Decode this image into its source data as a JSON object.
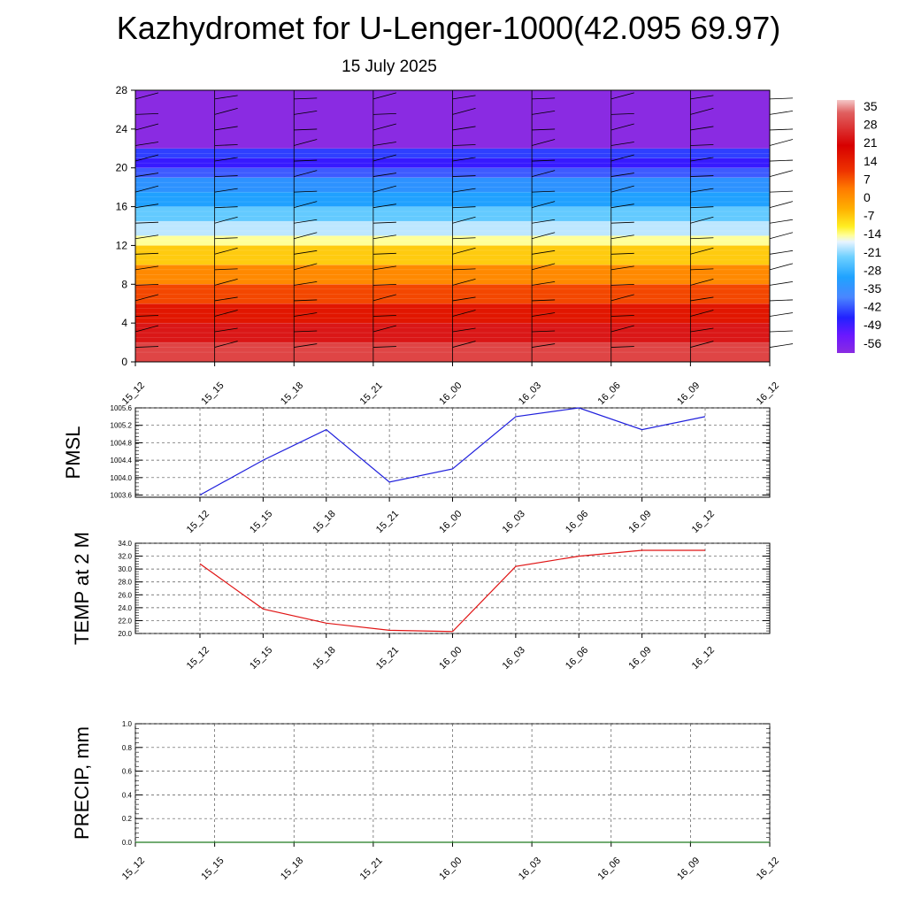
{
  "page": {
    "title": "Kazhydromet for U-Lenger-1000(42.095 69.97)",
    "subtitle": "15 July 2025"
  },
  "colors": {
    "pmsl_line": "#1f1fdc",
    "temp_line": "#e01414",
    "precip_line": "#1e7a1e",
    "grid": "#555555"
  },
  "chart_data": [
    {
      "type": "heatmap",
      "name": "temperature-height-section",
      "x": [
        "15_12",
        "15_15",
        "15_18",
        "15_21",
        "16_00",
        "16_03",
        "16_06",
        "16_09",
        "16_12"
      ],
      "ylim": [
        0,
        28
      ],
      "yticks": [
        0,
        4,
        8,
        12,
        16,
        20,
        24,
        28
      ],
      "colorbar": {
        "labels": [
          "35",
          "28",
          "21",
          "14",
          "7",
          "0",
          "-7",
          "-14",
          "-21",
          "-28",
          "-35",
          "-42",
          "-49",
          "-56"
        ],
        "range": [
          -60,
          38
        ]
      },
      "bands": [
        {
          "y0": 0,
          "y1": 2,
          "value": 34
        },
        {
          "y0": 2,
          "y1": 4,
          "value": 30
        },
        {
          "y0": 4,
          "y1": 6,
          "value": 25
        },
        {
          "y0": 6,
          "y1": 8,
          "value": 19
        },
        {
          "y0": 8,
          "y1": 10,
          "value": 12
        },
        {
          "y0": 10,
          "y1": 12,
          "value": 4
        },
        {
          "y0": 12,
          "y1": 13,
          "value": -8
        },
        {
          "y0": 13,
          "y1": 14.5,
          "value": -16
        },
        {
          "y0": 14.5,
          "y1": 16,
          "value": -22
        },
        {
          "y0": 16,
          "y1": 17.5,
          "value": -29
        },
        {
          "y0": 17.5,
          "y1": 19,
          "value": -36
        },
        {
          "y0": 19,
          "y1": 20,
          "value": -44
        },
        {
          "y0": 20,
          "y1": 21,
          "value": -52
        },
        {
          "y0": 21,
          "y1": 22,
          "value": -46
        },
        {
          "y0": 22,
          "y1": 28,
          "value": -60
        }
      ],
      "wind_barbs": "present"
    },
    {
      "type": "line",
      "ylabel": "PMSL",
      "x": [
        "15_12",
        "15_15",
        "15_18",
        "15_21",
        "16_00",
        "16_03",
        "16_06",
        "16_09",
        "16_12"
      ],
      "values": [
        1003.6,
        1004.4,
        1005.1,
        1003.9,
        1004.2,
        1005.4,
        1005.6,
        1005.1,
        1005.4
      ],
      "yticks": [
        "1003.6",
        "1004.0",
        "1004.4",
        "1004.8",
        "1005.2",
        "1005.6"
      ],
      "ylim": [
        1003.55,
        1005.6
      ],
      "grid": true
    },
    {
      "type": "line",
      "ylabel": "TEMP at 2 M",
      "x": [
        "15_12",
        "15_15",
        "15_18",
        "15_21",
        "16_00",
        "16_03",
        "16_06",
        "16_09",
        "16_12"
      ],
      "values": [
        30.8,
        23.8,
        21.6,
        20.5,
        20.3,
        30.4,
        32.0,
        32.9,
        32.9
      ],
      "yticks": [
        "20.0",
        "22.0",
        "24.0",
        "26.0",
        "28.0",
        "30.0",
        "32.0",
        "34.0"
      ],
      "ylim": [
        20.0,
        34.0
      ],
      "grid": true
    },
    {
      "type": "line",
      "ylabel": "PRECIP, mm",
      "x": [
        "15_12",
        "15_15",
        "15_18",
        "15_21",
        "16_00",
        "16_03",
        "16_06",
        "16_09",
        "16_12"
      ],
      "values": [
        0,
        0,
        0,
        0,
        0,
        0,
        0,
        0,
        0
      ],
      "yticks": [
        "0.0",
        "0.2",
        "0.4",
        "0.6",
        "0.8",
        "1.0"
      ],
      "ylim": [
        0,
        1.0
      ],
      "grid": true
    }
  ]
}
